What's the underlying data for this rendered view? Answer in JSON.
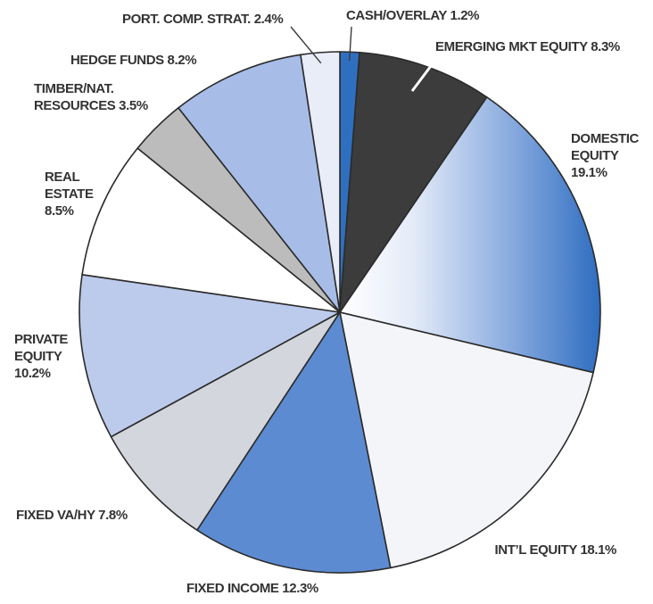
{
  "chart_data": {
    "type": "pie",
    "title": "",
    "start_angle_deg": 0,
    "direction": "clockwise",
    "slices": [
      {
        "label": "CASH/OVERLAY",
        "value": 1.2,
        "display": "CASH/OVERLAY 1.2%",
        "color": "#2f6fc0"
      },
      {
        "label": "EMERGING MKT EQUITY",
        "value": 8.3,
        "display": "EMERGING MKT EQUITY 8.3%",
        "color": "#3c3c3c"
      },
      {
        "label": "DOMESTIC EQUITY",
        "value": 19.1,
        "display": "DOMESTIC EQUITY 19.1%",
        "color": "#3f7ac6"
      },
      {
        "label": "INT'L EQUITY",
        "value": 18.1,
        "display": "INT’L EQUITY 18.1%",
        "color": "#f4f5f8"
      },
      {
        "label": "FIXED INCOME",
        "value": 12.3,
        "display": "FIXED INCOME 12.3%",
        "color": "#5d8bd2"
      },
      {
        "label": "FIXED VA/HY",
        "value": 7.8,
        "display": "FIXED VA/HY  7.8%",
        "color": "#d3d6dc"
      },
      {
        "label": "PRIVATE EQUITY",
        "value": 10.2,
        "display": "PRIVATE EQUITY 10.2%",
        "color": "#bccbec"
      },
      {
        "label": "REAL ESTATE",
        "value": 8.5,
        "display": "REAL ESTATE 8.5%",
        "color": "#ffffff"
      },
      {
        "label": "TIMBER/NAT. RESOURCES",
        "value": 3.5,
        "display": "TIMBER/NAT. RESOURCES 3.5%",
        "color": "#bcbcbc"
      },
      {
        "label": "HEDGE FUNDS",
        "value": 8.2,
        "display": "HEDGE FUNDS 8.2%",
        "color": "#a7bde8"
      },
      {
        "label": "PORT. COMP. STRAT.",
        "value": 2.4,
        "display": "PORT. COMP.  STRAT. 2.4%",
        "color": "#e8edf8"
      }
    ]
  }
}
